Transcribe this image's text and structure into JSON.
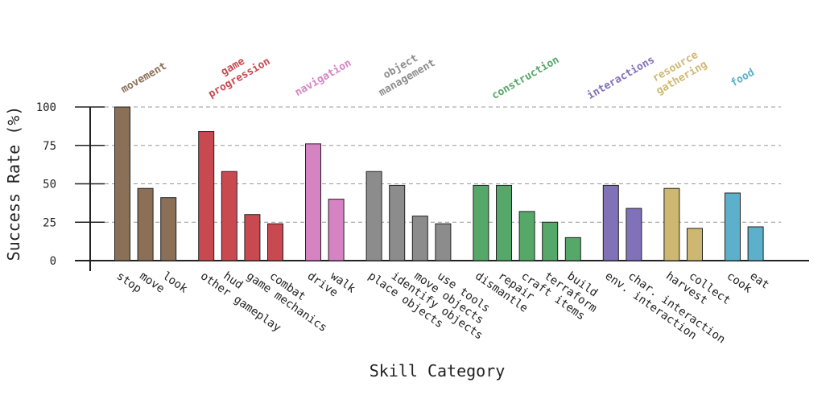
{
  "chart_data": {
    "type": "bar",
    "x_label": "Skill Category",
    "y_label": "Success Rate (%)",
    "ylim": [
      0,
      100
    ],
    "yticks": [
      0,
      25,
      50,
      75,
      100
    ],
    "grid": true,
    "series": [
      {
        "name": "movement",
        "color": "#8b6f56",
        "categories": [
          "stop",
          "move",
          "look"
        ],
        "values": [
          100,
          47,
          41
        ]
      },
      {
        "name": "game progression",
        "color": "#c84a50",
        "categories": [
          "other gameplay",
          "hud",
          "game mechanics",
          "combat"
        ],
        "values": [
          84,
          58,
          30,
          24
        ]
      },
      {
        "name": "navigation",
        "color": "#d683c4",
        "categories": [
          "drive",
          "walk"
        ],
        "values": [
          76,
          40
        ]
      },
      {
        "name": "object management",
        "color": "#8c8c8c",
        "categories": [
          "place objects",
          "identify objects",
          "move objects",
          "use tools"
        ],
        "values": [
          58,
          49,
          29,
          24
        ]
      },
      {
        "name": "construction",
        "color": "#55a868",
        "categories": [
          "dismantle",
          "repair",
          "craft items",
          "terraform",
          "build"
        ],
        "values": [
          49,
          49,
          32,
          25,
          15
        ]
      },
      {
        "name": "interactions",
        "color": "#8071b8",
        "categories": [
          "env. interaction",
          "char. interaction"
        ],
        "values": [
          49,
          34
        ]
      },
      {
        "name": "resource gathering",
        "color": "#ceb871",
        "categories": [
          "harvest",
          "collect"
        ],
        "values": [
          47,
          21
        ]
      },
      {
        "name": "food",
        "color": "#5cb0cb",
        "categories": [
          "cook",
          "eat"
        ],
        "values": [
          44,
          22
        ]
      }
    ]
  }
}
